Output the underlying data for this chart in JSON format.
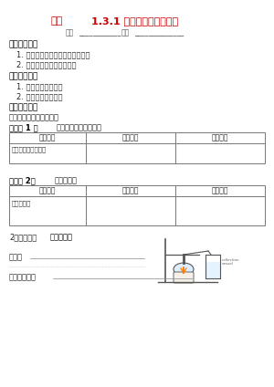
{
  "title_label": "课题",
  "title_text": "1.3.1 怎样学习和研究化学",
  "subtitle_parts": [
    "班级",
    "____________",
    "姓名",
    "______________"
  ],
  "section1_header": "《学习目标》",
  "section1_items": [
    "1. 初步学会化学实验中的基本操作",
    "2. 初步了解实验现象的描述"
  ],
  "section2_header": "《学习重点》",
  "section2_items": [
    "1. 化学实验基本操作",
    "2. 观察描述实验现象"
  ],
  "section3_header": "《教学过程》",
  "section3_sub": "一、学习交流、分组实验",
  "exp1_label": "《实验 1 》",
  "exp1_title": "「酒精」和比较的作用",
  "table1_headers": [
    "实验内容",
    "实验现象",
    "实验结论"
  ],
  "table1_row1": [
    "「酒精」和比较现象",
    "",
    ""
  ],
  "exp2_label": "《实验 2》",
  "exp2_title": "加热「锂」",
  "table2_headers": [
    "实验内容",
    "实验现象",
    "实验结论"
  ],
  "table2_row1": [
    "加热「锂」",
    "",
    ""
  ],
  "section4_sub": "2、探究实验",
  "exp3_label": "《锂加热》",
  "obs_label": "现象：",
  "wenzi_label": "文字表达式：",
  "title_color": "#cc0000",
  "subtitle_color": "#555555",
  "header_color": "#000000",
  "body_color": "#333333",
  "table_border_color": "#888888",
  "bg_color": "#ffffff"
}
